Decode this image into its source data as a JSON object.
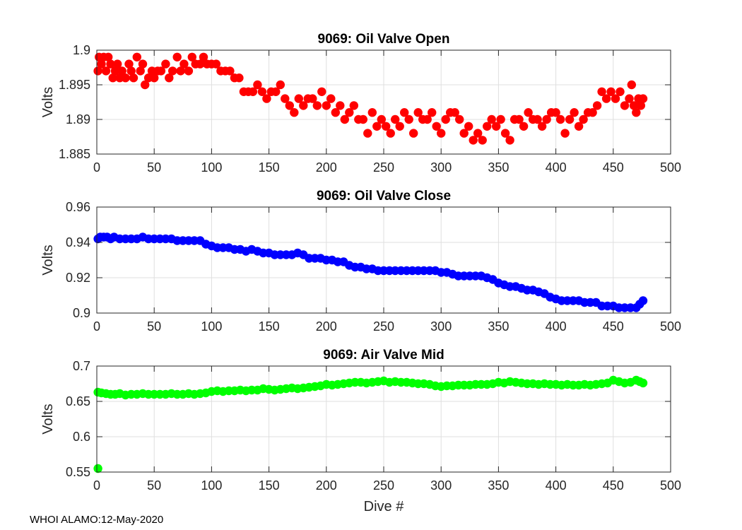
{
  "footer": "WHOI ALAMO:12-May-2020",
  "chart_data": [
    {
      "type": "scatter",
      "title": "9069: Oil Valve Open",
      "xlabel": "",
      "ylabel": "Volts",
      "xlim": [
        0,
        500
      ],
      "ylim": [
        1.885,
        1.9
      ],
      "xticks": [
        0,
        50,
        100,
        150,
        200,
        250,
        300,
        350,
        400,
        450,
        500
      ],
      "xtick_labels": [
        "0",
        "50",
        "100",
        "150",
        "200",
        "250",
        "300",
        "350",
        "400",
        "450",
        "500"
      ],
      "yticks": [
        1.885,
        1.89,
        1.895,
        1.9
      ],
      "ytick_labels": [
        "1.885",
        "1.89",
        "1.895",
        "1.9"
      ],
      "grid": true,
      "color": "#ff0000",
      "series": [
        {
          "name": "Oil Valve Open",
          "x": [
            1,
            2,
            4,
            6,
            8,
            10,
            12,
            14,
            16,
            18,
            20,
            22,
            25,
            28,
            30,
            32,
            35,
            38,
            40,
            42,
            45,
            48,
            50,
            53,
            56,
            60,
            63,
            66,
            70,
            73,
            76,
            80,
            83,
            86,
            90,
            93,
            96,
            100,
            104,
            108,
            112,
            116,
            120,
            124,
            128,
            132,
            136,
            140,
            144,
            148,
            152,
            156,
            160,
            164,
            168,
            172,
            176,
            180,
            184,
            188,
            192,
            196,
            200,
            204,
            208,
            212,
            216,
            220,
            224,
            228,
            232,
            236,
            240,
            244,
            248,
            252,
            256,
            260,
            264,
            268,
            272,
            276,
            280,
            284,
            288,
            292,
            296,
            300,
            304,
            308,
            312,
            316,
            320,
            324,
            328,
            332,
            336,
            340,
            344,
            348,
            352,
            356,
            360,
            364,
            368,
            372,
            376,
            380,
            384,
            388,
            392,
            396,
            400,
            404,
            408,
            412,
            416,
            420,
            424,
            428,
            432,
            436,
            440,
            444,
            448,
            452,
            456,
            460,
            464,
            466,
            468,
            470,
            472,
            474,
            476
          ],
          "y": [
            1.897,
            1.899,
            1.898,
            1.899,
            1.897,
            1.899,
            1.898,
            1.896,
            1.897,
            1.898,
            1.896,
            1.897,
            1.896,
            1.898,
            1.897,
            1.896,
            1.899,
            1.897,
            1.898,
            1.895,
            1.896,
            1.897,
            1.896,
            1.897,
            1.897,
            1.898,
            1.896,
            1.897,
            1.899,
            1.897,
            1.898,
            1.897,
            1.899,
            1.898,
            1.898,
            1.899,
            1.898,
            1.898,
            1.898,
            1.897,
            1.897,
            1.897,
            1.896,
            1.896,
            1.894,
            1.894,
            1.894,
            1.895,
            1.894,
            1.893,
            1.894,
            1.894,
            1.895,
            1.893,
            1.892,
            1.891,
            1.893,
            1.892,
            1.893,
            1.893,
            1.892,
            1.894,
            1.892,
            1.893,
            1.891,
            1.892,
            1.89,
            1.891,
            1.892,
            1.89,
            1.89,
            1.888,
            1.891,
            1.889,
            1.89,
            1.889,
            1.888,
            1.89,
            1.889,
            1.891,
            1.89,
            1.888,
            1.891,
            1.89,
            1.89,
            1.891,
            1.889,
            1.888,
            1.89,
            1.891,
            1.891,
            1.89,
            1.888,
            1.889,
            1.887,
            1.888,
            1.887,
            1.889,
            1.89,
            1.889,
            1.89,
            1.888,
            1.887,
            1.89,
            1.89,
            1.889,
            1.891,
            1.89,
            1.89,
            1.889,
            1.89,
            1.891,
            1.891,
            1.89,
            1.888,
            1.89,
            1.891,
            1.889,
            1.89,
            1.891,
            1.891,
            1.892,
            1.894,
            1.893,
            1.894,
            1.893,
            1.894,
            1.892,
            1.893,
            1.895,
            1.892,
            1.891,
            1.893,
            1.892,
            1.893
          ]
        }
      ]
    },
    {
      "type": "scatter",
      "title": "9069: Oil Valve Close",
      "xlabel": "",
      "ylabel": "Volts",
      "xlim": [
        0,
        500
      ],
      "ylim": [
        0.9,
        0.96
      ],
      "xticks": [
        0,
        50,
        100,
        150,
        200,
        250,
        300,
        350,
        400,
        450,
        500
      ],
      "xtick_labels": [
        "0",
        "50",
        "100",
        "150",
        "200",
        "250",
        "300",
        "350",
        "400",
        "450",
        "500"
      ],
      "yticks": [
        0.9,
        0.92,
        0.94,
        0.96
      ],
      "ytick_labels": [
        "0.9",
        "0.92",
        "0.94",
        "0.96"
      ],
      "grid": true,
      "color": "#0000ff",
      "series": [
        {
          "name": "Oil Valve Close",
          "x": [
            1,
            3,
            6,
            9,
            12,
            15,
            20,
            25,
            30,
            35,
            40,
            45,
            50,
            55,
            60,
            65,
            70,
            75,
            80,
            85,
            90,
            95,
            100,
            105,
            110,
            115,
            120,
            125,
            130,
            135,
            140,
            145,
            150,
            155,
            160,
            165,
            170,
            175,
            180,
            185,
            190,
            195,
            200,
            205,
            210,
            215,
            220,
            225,
            230,
            235,
            240,
            245,
            250,
            255,
            260,
            265,
            270,
            275,
            280,
            285,
            290,
            295,
            300,
            305,
            310,
            315,
            320,
            325,
            330,
            335,
            340,
            345,
            350,
            355,
            360,
            365,
            370,
            375,
            380,
            385,
            390,
            395,
            400,
            405,
            410,
            415,
            420,
            425,
            430,
            435,
            440,
            445,
            450,
            455,
            460,
            465,
            470,
            473,
            476
          ],
          "y": [
            0.942,
            0.943,
            0.943,
            0.943,
            0.942,
            0.943,
            0.942,
            0.942,
            0.942,
            0.942,
            0.943,
            0.942,
            0.942,
            0.942,
            0.942,
            0.942,
            0.941,
            0.941,
            0.941,
            0.941,
            0.941,
            0.939,
            0.938,
            0.937,
            0.937,
            0.937,
            0.936,
            0.936,
            0.935,
            0.936,
            0.935,
            0.934,
            0.934,
            0.933,
            0.933,
            0.933,
            0.933,
            0.934,
            0.933,
            0.931,
            0.931,
            0.931,
            0.93,
            0.93,
            0.929,
            0.929,
            0.927,
            0.926,
            0.926,
            0.925,
            0.925,
            0.924,
            0.924,
            0.924,
            0.924,
            0.924,
            0.924,
            0.924,
            0.924,
            0.924,
            0.924,
            0.924,
            0.923,
            0.923,
            0.922,
            0.921,
            0.921,
            0.921,
            0.921,
            0.921,
            0.92,
            0.919,
            0.917,
            0.916,
            0.915,
            0.915,
            0.914,
            0.913,
            0.913,
            0.912,
            0.911,
            0.909,
            0.908,
            0.907,
            0.907,
            0.907,
            0.907,
            0.906,
            0.906,
            0.906,
            0.904,
            0.904,
            0.904,
            0.903,
            0.903,
            0.903,
            0.903,
            0.905,
            0.907
          ]
        }
      ]
    },
    {
      "type": "scatter",
      "title": "9069: Air Valve Mid",
      "xlabel": "Dive #",
      "ylabel": "Volts",
      "xlim": [
        0,
        500
      ],
      "ylim": [
        0.55,
        0.7
      ],
      "xticks": [
        0,
        50,
        100,
        150,
        200,
        250,
        300,
        350,
        400,
        450,
        500
      ],
      "xtick_labels": [
        "0",
        "50",
        "100",
        "150",
        "200",
        "250",
        "300",
        "350",
        "400",
        "450",
        "500"
      ],
      "yticks": [
        0.55,
        0.6,
        0.65,
        0.7
      ],
      "ytick_labels": [
        "0.55",
        "0.6",
        "0.65",
        "0.7"
      ],
      "grid": true,
      "color": "#00ff00",
      "series": [
        {
          "name": "Air Valve Mid",
          "x": [
            1,
            1,
            4,
            8,
            12,
            16,
            20,
            25,
            30,
            35,
            40,
            45,
            50,
            55,
            60,
            65,
            70,
            75,
            80,
            85,
            90,
            95,
            100,
            105,
            110,
            115,
            120,
            125,
            130,
            135,
            140,
            145,
            150,
            155,
            160,
            165,
            170,
            175,
            180,
            185,
            190,
            195,
            200,
            205,
            210,
            215,
            220,
            225,
            230,
            235,
            240,
            245,
            250,
            255,
            260,
            265,
            270,
            275,
            280,
            285,
            290,
            295,
            300,
            305,
            310,
            315,
            320,
            325,
            330,
            335,
            340,
            345,
            350,
            355,
            360,
            365,
            370,
            375,
            380,
            385,
            390,
            395,
            400,
            405,
            410,
            415,
            420,
            425,
            430,
            435,
            440,
            445,
            450,
            455,
            460,
            465,
            470,
            473,
            476
          ],
          "y": [
            0.555,
            0.663,
            0.662,
            0.661,
            0.66,
            0.66,
            0.661,
            0.659,
            0.66,
            0.66,
            0.661,
            0.66,
            0.66,
            0.66,
            0.66,
            0.661,
            0.66,
            0.66,
            0.661,
            0.66,
            0.661,
            0.662,
            0.664,
            0.665,
            0.664,
            0.665,
            0.665,
            0.666,
            0.665,
            0.666,
            0.666,
            0.668,
            0.667,
            0.666,
            0.667,
            0.668,
            0.669,
            0.668,
            0.669,
            0.67,
            0.671,
            0.672,
            0.674,
            0.673,
            0.674,
            0.675,
            0.676,
            0.677,
            0.677,
            0.676,
            0.677,
            0.678,
            0.679,
            0.677,
            0.678,
            0.677,
            0.677,
            0.676,
            0.675,
            0.675,
            0.674,
            0.672,
            0.671,
            0.672,
            0.672,
            0.673,
            0.673,
            0.673,
            0.674,
            0.674,
            0.674,
            0.675,
            0.677,
            0.676,
            0.678,
            0.677,
            0.676,
            0.675,
            0.675,
            0.674,
            0.675,
            0.674,
            0.674,
            0.673,
            0.674,
            0.673,
            0.673,
            0.674,
            0.673,
            0.674,
            0.675,
            0.676,
            0.68,
            0.678,
            0.676,
            0.677,
            0.68,
            0.678,
            0.676
          ]
        }
      ]
    }
  ]
}
